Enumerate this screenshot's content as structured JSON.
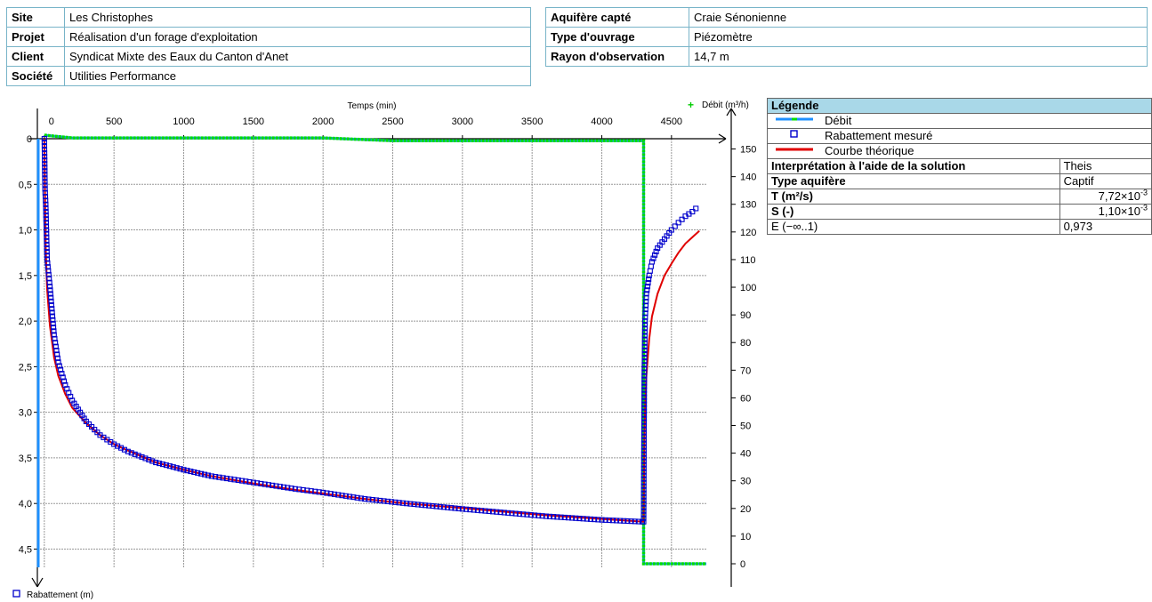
{
  "info_left": [
    {
      "key": "Site",
      "value": "Les Christophes"
    },
    {
      "key": "Projet",
      "value": "Réalisation d'un forage d'exploitation"
    },
    {
      "key": "Client",
      "value": "Syndicat Mixte des Eaux du Canton d'Anet"
    },
    {
      "key": "Société",
      "value": "Utilities Performance"
    }
  ],
  "info_right": [
    {
      "key": "Aquifère capté",
      "value": "Craie Sénonienne"
    },
    {
      "key": "Type d'ouvrage",
      "value": "Piézomètre"
    },
    {
      "key": "Rayon d'observation",
      "value": "14,7 m"
    }
  ],
  "legend": {
    "title": "Légende",
    "items": [
      {
        "label": "Débit",
        "color": "#1e90ff"
      },
      {
        "label": "Rabattement mesuré",
        "color": "#0000cc"
      },
      {
        "label": "Courbe théorique",
        "color": "#e00000"
      }
    ],
    "interp_label": "Interprétation à l'aide de la solution",
    "interp_value": "Theis",
    "type_label": "Type aquifère",
    "type_value": "Captif",
    "T_label": "T (m²/s)",
    "T_mant": "7,72×10",
    "T_exp": "-3",
    "S_label": "S (-)",
    "S_mant": "1,10×10",
    "S_exp": "-3",
    "E_label": "E (−∞..1)",
    "E_value": "0,973"
  },
  "chart_data": {
    "type": "line",
    "xlabel": "Temps (min)",
    "ylabel": "Rabattement (m)",
    "y2label": "Débit (m³/h)",
    "xlim": [
      -50,
      4750
    ],
    "ylim": [
      0,
      4.7
    ],
    "y2lim": [
      0,
      155
    ],
    "x_ticks": [
      0,
      500,
      1000,
      1500,
      2000,
      2500,
      3000,
      3500,
      4000,
      4500
    ],
    "y_ticks": [
      "0",
      "0,5",
      "1,0",
      "1,5",
      "2,0",
      "2,5",
      "3,0",
      "3,5",
      "4,0",
      "4,5"
    ],
    "y2_ticks": [
      0,
      10,
      20,
      30,
      40,
      50,
      60,
      70,
      80,
      90,
      100,
      110,
      120,
      130,
      140,
      150
    ],
    "grid": true,
    "pumping_stop_min": 4300,
    "series": [
      {
        "name": "Débit",
        "color_line": "#1e90ff",
        "color_marker": "#00dd00",
        "x": [
          0,
          200,
          500,
          1000,
          1500,
          2000,
          2500,
          3000,
          3500,
          4000,
          4300,
          4300,
          4750
        ],
        "y": [
          155,
          154,
          154,
          154,
          154,
          154,
          153,
          153,
          153,
          153,
          153,
          0,
          0
        ]
      },
      {
        "name": "Rabattement mesuré",
        "color": "#0000cc",
        "x": [
          0,
          5,
          10,
          20,
          40,
          70,
          100,
          150,
          200,
          300,
          400,
          500,
          600,
          800,
          1000,
          1200,
          1500,
          1800,
          2000,
          2300,
          2600,
          3000,
          3300,
          3600,
          4000,
          4290,
          4300,
          4305,
          4310,
          4320,
          4340,
          4360,
          4400,
          4450,
          4500,
          4550,
          4600,
          4650,
          4700
        ],
        "y": [
          0,
          0.55,
          0.72,
          1.32,
          1.62,
          2.15,
          2.45,
          2.7,
          2.87,
          3.1,
          3.25,
          3.35,
          3.43,
          3.55,
          3.63,
          3.7,
          3.77,
          3.84,
          3.88,
          3.95,
          4.0,
          4.06,
          4.1,
          4.14,
          4.18,
          4.2,
          4.2,
          2.6,
          2.0,
          1.7,
          1.5,
          1.35,
          1.2,
          1.1,
          1.0,
          0.92,
          0.85,
          0.8,
          0.73
        ]
      },
      {
        "name": "Courbe théorique",
        "color": "#e00000",
        "x": [
          0,
          10,
          20,
          40,
          70,
          100,
          150,
          200,
          300,
          400,
          500,
          600,
          800,
          1000,
          1200,
          1500,
          1800,
          2000,
          2300,
          2600,
          3000,
          3300,
          3600,
          4000,
          4300,
          4305,
          4310,
          4320,
          4340,
          4360,
          4400,
          4450,
          4500,
          4550,
          4600,
          4650,
          4700
        ],
        "y": [
          0,
          1.2,
          1.65,
          2.05,
          2.4,
          2.6,
          2.8,
          2.95,
          3.12,
          3.25,
          3.35,
          3.42,
          3.55,
          3.63,
          3.7,
          3.78,
          3.85,
          3.89,
          3.95,
          4.0,
          4.05,
          4.09,
          4.13,
          4.17,
          4.2,
          3.4,
          3.0,
          2.6,
          2.2,
          1.95,
          1.7,
          1.5,
          1.37,
          1.25,
          1.15,
          1.08,
          1.01
        ]
      }
    ]
  }
}
